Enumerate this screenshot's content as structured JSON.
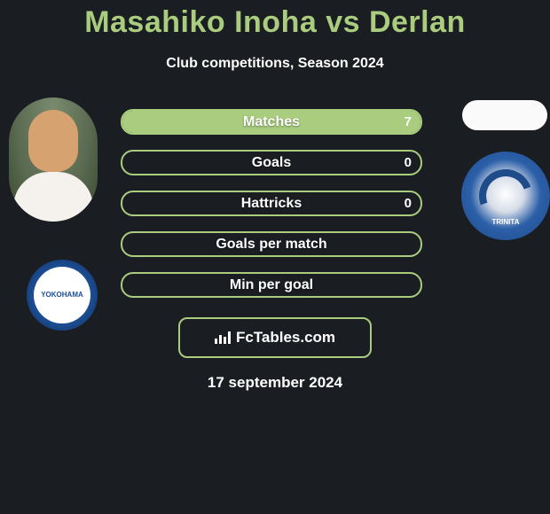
{
  "title": "Masahiko Inoha vs Derlan",
  "title_color": "#a9cc7e",
  "subtitle": "Club competitions, Season 2024",
  "accent_color": "#a9cc7e",
  "bar_bg_color": "#1a1d22",
  "bars": [
    {
      "label": "Matches",
      "left": "",
      "right": "7",
      "left_pct": 0,
      "right_pct": 100
    },
    {
      "label": "Goals",
      "left": "",
      "right": "0",
      "left_pct": 0,
      "right_pct": 0
    },
    {
      "label": "Hattricks",
      "left": "",
      "right": "0",
      "left_pct": 0,
      "right_pct": 0
    },
    {
      "label": "Goals per match",
      "left": "",
      "right": "",
      "left_pct": 0,
      "right_pct": 0
    },
    {
      "label": "Min per goal",
      "left": "",
      "right": "",
      "left_pct": 0,
      "right_pct": 0
    }
  ],
  "left_badge_text": "YOKOHAMA",
  "right_badge_text": "TRINITA",
  "footer_brand": "FcTables.com",
  "date": "17 september 2024"
}
